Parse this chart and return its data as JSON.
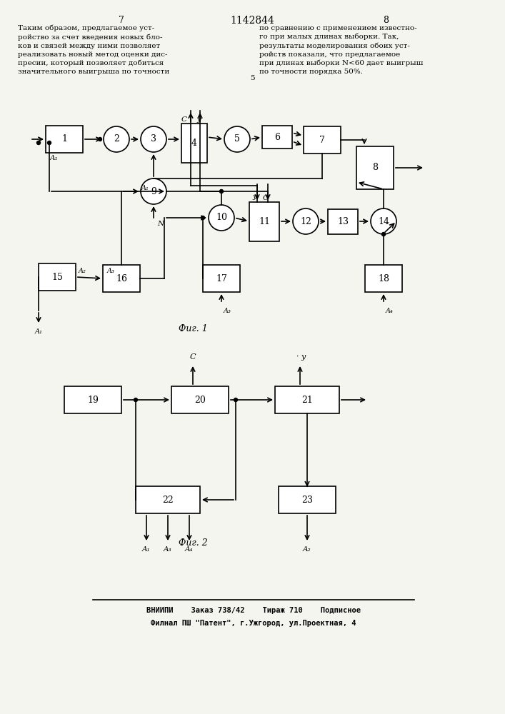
{
  "fig_width": 7.07,
  "fig_height": 10.0,
  "bg_color": "#f5f5f0",
  "page_number_left": "7",
  "page_number_center": "1142844",
  "page_number_right": "8",
  "text_left": "Таким образом, предлагаемое уст-\nройство за счет введения новых бло-\nков и связей между ними позволяет\nреализовать новый метод оценки дис-\nпресии, который позволяет добиться\nзначительного выигрыша по точности",
  "text_right": "по сравнению с применением известно-\nго при малых длинах выборки. Так,\nрезультаты моделирования обоих уст-\nройств показали, что предлагаемое\nпри длинах выборки N<60 дает выигрыш\nпо точности порядка 50%.",
  "fig1_caption": "Фиг. 1",
  "fig2_caption": "Фиг. 2",
  "footer_line1": "ВНИИПИ    Заказ 738/42    Тираж 710    Подписное",
  "footer_line2": "Филнал ПШ \"Патент\", г.Ужгород, ул.Проектная, 4"
}
